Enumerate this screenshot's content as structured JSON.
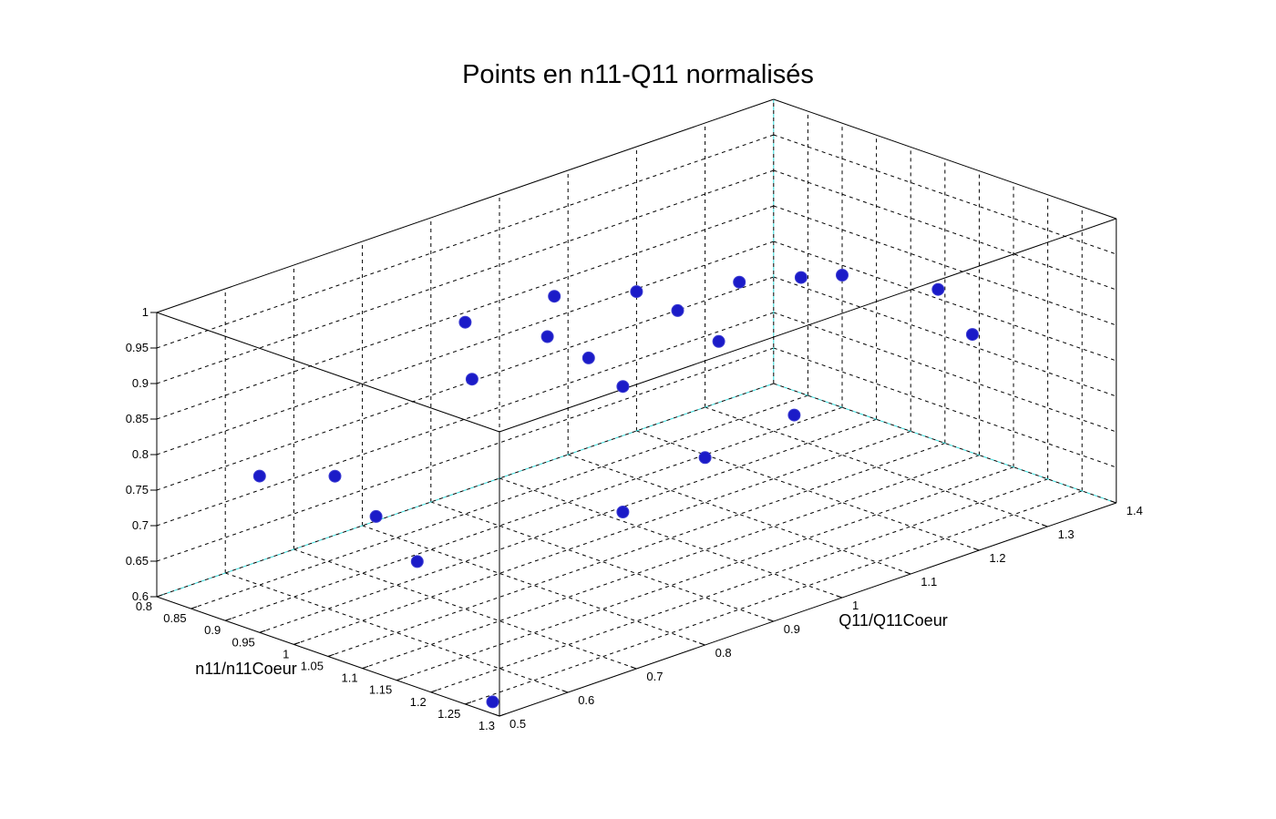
{
  "chart_data": {
    "type": "scatter",
    "title": "Points en n11-Q11 normalisés",
    "xlabel": "n11/n11Coeur",
    "ylabel": "Q11/Q11Coeur",
    "zlabel": "",
    "xlim": [
      0.8,
      1.3
    ],
    "ylim": [
      0.5,
      1.4
    ],
    "zlim": [
      0.6,
      1.0
    ],
    "xticks": [
      0.8,
      0.85,
      0.9,
      0.95,
      1,
      1.05,
      1.1,
      1.15,
      1.2,
      1.25,
      1.3
    ],
    "yticks": [
      0.5,
      0.6,
      0.7,
      0.8,
      0.9,
      1,
      1.1,
      1.2,
      1.3,
      1.4
    ],
    "zticks": [
      0.6,
      0.65,
      0.7,
      0.75,
      0.8,
      0.85,
      0.9,
      0.95,
      1
    ],
    "grid": true,
    "legend": null,
    "grid_color": "#000000",
    "grid_accent_color": "#33dddd",
    "marker_color": "#1b1bc8",
    "marker_edge_color": "#3c3cd2",
    "marker_size": 13,
    "points": [
      {
        "n11": 0.97,
        "q11": 0.78,
        "z": 0.95
      },
      {
        "n11": 1.02,
        "q11": 0.74,
        "z": 0.9
      },
      {
        "n11": 0.98,
        "q11": 0.9,
        "z": 0.95
      },
      {
        "n11": 1.03,
        "q11": 0.84,
        "z": 0.93
      },
      {
        "n11": 1.06,
        "q11": 0.87,
        "z": 0.9
      },
      {
        "n11": 1.03,
        "q11": 0.97,
        "z": 0.95
      },
      {
        "n11": 1.1,
        "q11": 0.88,
        "z": 0.87
      },
      {
        "n11": 1.07,
        "q11": 0.99,
        "z": 0.93
      },
      {
        "n11": 1.12,
        "q11": 1.0,
        "z": 0.9
      },
      {
        "n11": 1.07,
        "q11": 1.08,
        "z": 0.94
      },
      {
        "n11": 1.09,
        "q11": 1.15,
        "z": 0.93
      },
      {
        "n11": 1.1,
        "q11": 1.2,
        "z": 0.92
      },
      {
        "n11": 1.14,
        "q11": 1.3,
        "z": 0.88
      },
      {
        "n11": 1.17,
        "q11": 1.32,
        "z": 0.82
      },
      {
        "n11": 1.18,
        "q11": 1.05,
        "z": 0.8
      },
      {
        "n11": 0.89,
        "q11": 0.56,
        "z": 0.78
      },
      {
        "n11": 0.93,
        "q11": 0.63,
        "z": 0.77
      },
      {
        "n11": 0.97,
        "q11": 0.65,
        "z": 0.72
      },
      {
        "n11": 1.02,
        "q11": 0.66,
        "z": 0.67
      },
      {
        "n11": 1.11,
        "q11": 0.87,
        "z": 0.7
      },
      {
        "n11": 1.13,
        "q11": 0.97,
        "z": 0.75
      },
      {
        "n11": 1.28,
        "q11": 0.51,
        "z": 0.61
      }
    ]
  }
}
